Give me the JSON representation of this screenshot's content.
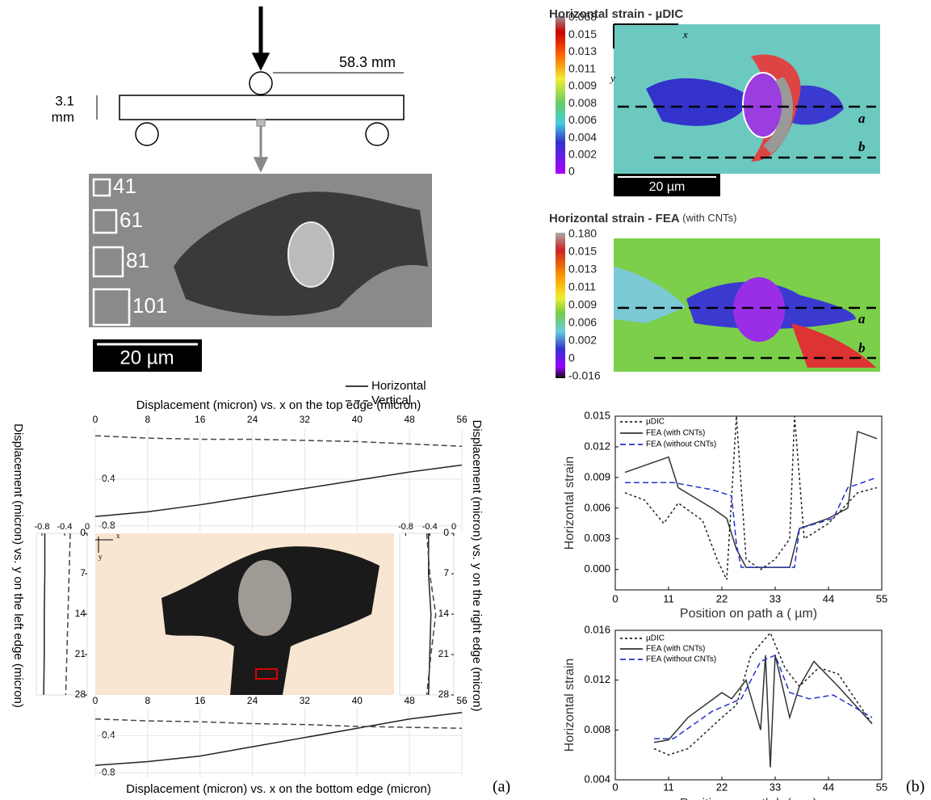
{
  "schematic": {
    "span": "58.3 mm",
    "thickness": "3.1",
    "thickness_unit": "mm"
  },
  "sem": {
    "boxes": [
      "41",
      "61",
      "81",
      "101"
    ],
    "scale": "20 µm"
  },
  "udic": {
    "title": "Horizontal strain - µDIC",
    "colorbar": [
      "0.068",
      "0.015",
      "0.013",
      "0.011",
      "0.009",
      "0.008",
      "0.006",
      "0.004",
      "0.002",
      "0"
    ],
    "axis_x": "x",
    "axis_y": "y",
    "path_a": "a",
    "path_b": "b",
    "scale": "20 µm"
  },
  "fea": {
    "title": "Horizontal strain - FEA",
    "title_note": "(with CNTs)",
    "colorbar": [
      "0.180",
      "0.015",
      "0.013",
      "0.011",
      "0.009",
      "0.006",
      "0.002",
      "0",
      "-0.016"
    ],
    "path_a": "a",
    "path_b": "b"
  },
  "mid_image": {
    "axis_x": "x",
    "axis_y": "y"
  },
  "panel_labels": [
    "(a)",
    "(b)"
  ],
  "chart_data": [
    {
      "type": "line",
      "title": "Displacement (micron) vs. x on the top edge (micron)",
      "grid": true,
      "x": [
        0,
        8,
        16,
        24,
        32,
        40,
        48,
        56
      ],
      "xlim": [
        0,
        56
      ],
      "xticks": [
        0,
        8,
        16,
        24,
        32,
        40,
        48,
        56
      ],
      "ylim": [
        -0.85,
        0.02
      ],
      "yticks": [
        -0.4,
        -0.8
      ],
      "series": [
        {
          "name": "Horizontal",
          "style": "solid",
          "color": "#222222",
          "values": [
            -0.72,
            -0.68,
            -0.62,
            -0.55,
            -0.48,
            -0.41,
            -0.34,
            -0.28
          ]
        },
        {
          "name": "Vertical",
          "style": "dashed",
          "color": "#444444",
          "values": [
            -0.03,
            -0.05,
            -0.06,
            -0.06,
            -0.07,
            -0.08,
            -0.1,
            -0.12
          ]
        }
      ]
    },
    {
      "type": "line",
      "title": "Displacement (micron) vs. x on the bottom edge (micron)",
      "grid": true,
      "x": [
        0,
        8,
        16,
        24,
        32,
        40,
        48,
        56
      ],
      "xlim": [
        0,
        56
      ],
      "xticks": [
        0,
        8,
        16,
        24,
        32,
        40,
        48,
        56
      ],
      "ylim": [
        -0.85,
        -0.1
      ],
      "yticks": [
        -0.4,
        -0.8
      ],
      "series": [
        {
          "style": "solid",
          "color": "#222222",
          "values": [
            -0.72,
            -0.68,
            -0.62,
            -0.52,
            -0.42,
            -0.32,
            -0.22,
            -0.15
          ]
        },
        {
          "style": "dashed",
          "color": "#444444",
          "values": [
            -0.22,
            -0.24,
            -0.25,
            -0.27,
            -0.28,
            -0.3,
            -0.31,
            -0.32
          ]
        }
      ]
    },
    {
      "type": "profile",
      "title": "Displacement (micron) vs. y on the left edge (micron)",
      "positions": [
        0,
        7,
        14,
        21,
        28
      ],
      "ylim": [
        0,
        28
      ],
      "yticks": [
        0,
        7,
        14,
        21,
        28
      ],
      "xlim": [
        -0.9,
        0
      ],
      "xticks": [
        -0.8,
        -0.4,
        0
      ],
      "series": [
        {
          "style": "solid",
          "color": "#222222",
          "values": [
            -0.75,
            -0.75,
            -0.76,
            -0.76,
            -0.77
          ]
        },
        {
          "style": "dashed",
          "color": "#444444",
          "values": [
            -0.3,
            -0.32,
            -0.34,
            -0.36,
            -0.38
          ]
        }
      ]
    },
    {
      "type": "profile",
      "title": "Displacement (micron) vs. y on the right edge (micron)",
      "positions": [
        0,
        7,
        14,
        21,
        28
      ],
      "ylim": [
        0,
        28
      ],
      "yticks": [
        0,
        7,
        14,
        21,
        28
      ],
      "xlim": [
        -0.9,
        0
      ],
      "xticks": [
        -0.8,
        -0.4,
        0
      ],
      "series": [
        {
          "style": "solid",
          "color": "#222222",
          "values": [
            -0.42,
            -0.42,
            -0.38,
            -0.4,
            -0.42
          ]
        },
        {
          "style": "dashed",
          "color": "#444444",
          "values": [
            -0.45,
            -0.4,
            -0.3,
            -0.38,
            -0.45
          ]
        }
      ]
    },
    {
      "type": "line",
      "x_label": "Position on path a ( µm)",
      "y_label": "Horizontal strain",
      "legend": "upper left",
      "xlim": [
        0,
        55
      ],
      "xticks": [
        0,
        11,
        22,
        33,
        44,
        55
      ],
      "ylim": [
        -0.002,
        0.015
      ],
      "yticks": [
        {
          "value": 0,
          "label": "0.000"
        },
        0.003,
        0.006,
        0.009,
        0.012,
        0.015
      ],
      "series": [
        {
          "name": "µDIC",
          "style": "dotted",
          "color": "#222222",
          "x": [
            2,
            6,
            10,
            13,
            18,
            21,
            23,
            25,
            27,
            30,
            33,
            36,
            37,
            39,
            44,
            50,
            54
          ],
          "values": [
            0.0075,
            0.0068,
            0.0045,
            0.0065,
            0.0048,
            0.001,
            -0.001,
            0.015,
            0.001,
            0,
            0.001,
            0.003,
            0.015,
            0.003,
            0.0045,
            0.0075,
            0.008
          ]
        },
        {
          "name": "FEA (with CNTs)",
          "style": "solid",
          "color": "#333333",
          "x": [
            2,
            11,
            13,
            20,
            23,
            25,
            27,
            36,
            38,
            44,
            48,
            50,
            54
          ],
          "values": [
            0.0095,
            0.011,
            0.008,
            0.006,
            0.005,
            0.002,
            0.0002,
            0.0002,
            0.004,
            0.005,
            0.006,
            0.0135,
            0.0128
          ]
        },
        {
          "name": "FEA (without CNTs)",
          "style": "dashed",
          "color": "#2233cc",
          "x": [
            2,
            12,
            20,
            24,
            25,
            26,
            37,
            38,
            45,
            48,
            54
          ],
          "values": [
            0.0085,
            0.0085,
            0.0078,
            0.0072,
            0.0025,
            0.0002,
            0.0002,
            0.004,
            0.005,
            0.008,
            0.009
          ]
        }
      ]
    },
    {
      "type": "line",
      "x_label": "Position on path b ( µm)",
      "y_label": "Horizontal strain",
      "legend": "upper left",
      "xlim": [
        0,
        55
      ],
      "xticks": [
        0,
        11,
        22,
        33,
        44,
        55
      ],
      "ylim": [
        0.004,
        0.016
      ],
      "yticks": [
        0.004,
        0.008,
        0.012,
        0.016
      ],
      "series": [
        {
          "name": "µDIC",
          "style": "dotted",
          "color": "#222222",
          "x": [
            8,
            11,
            15,
            22,
            25,
            28,
            32,
            35,
            38,
            42,
            46,
            53
          ],
          "values": [
            0.0065,
            0.006,
            0.0065,
            0.009,
            0.01,
            0.014,
            0.0158,
            0.013,
            0.0115,
            0.013,
            0.0125,
            0.0085
          ]
        },
        {
          "name": "FEA (with CNTs)",
          "style": "solid",
          "color": "#333333",
          "x": [
            8,
            11,
            15,
            22,
            24,
            27,
            30,
            31,
            32,
            33,
            36,
            38,
            41,
            46,
            53
          ],
          "values": [
            0.007,
            0.0072,
            0.009,
            0.011,
            0.0105,
            0.012,
            0.008,
            0.014,
            0.005,
            0.014,
            0.009,
            0.0115,
            0.0135,
            0.0115,
            0.0085
          ]
        },
        {
          "name": "FEA (without CNTs)",
          "style": "dashed",
          "color": "#2233cc",
          "x": [
            8,
            12,
            20,
            26,
            30,
            33,
            36,
            40,
            45,
            53
          ],
          "values": [
            0.0073,
            0.0073,
            0.0095,
            0.0105,
            0.0135,
            0.014,
            0.011,
            0.0105,
            0.0108,
            0.009
          ]
        }
      ]
    }
  ]
}
